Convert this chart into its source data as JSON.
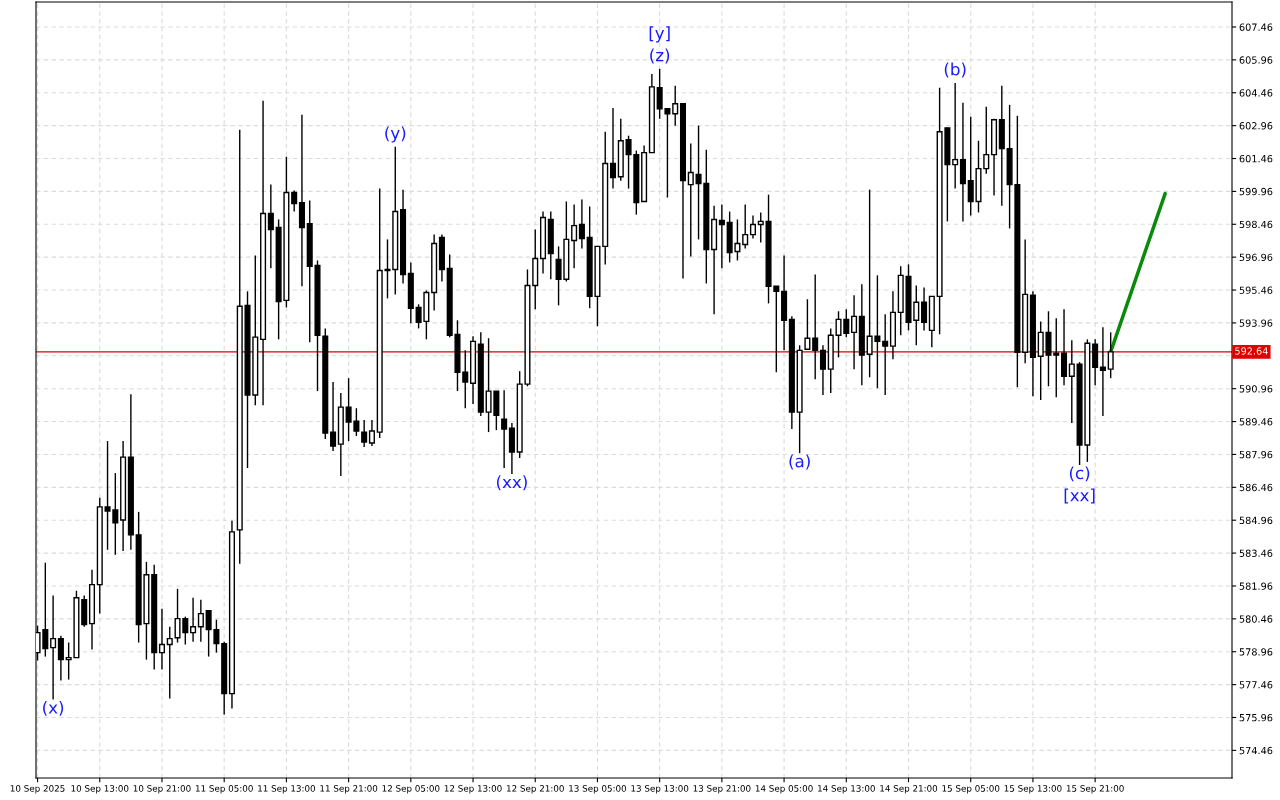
{
  "chart_data": {
    "type": "candlestick",
    "color": "#000000",
    "x": [
      "2025-09-10T05:00",
      "2025-09-10T06:00",
      "2025-09-10T07:00",
      "2025-09-10T08:00",
      "2025-09-10T09:00",
      "2025-09-10T10:00",
      "2025-09-10T11:00",
      "2025-09-10T12:00",
      "2025-09-10T13:00",
      "2025-09-10T14:00",
      "2025-09-10T15:00",
      "2025-09-10T16:00",
      "2025-09-10T17:00",
      "2025-09-10T18:00",
      "2025-09-10T19:00",
      "2025-09-10T20:00",
      "2025-09-10T21:00",
      "2025-09-10T22:00",
      "2025-09-10T23:00",
      "2025-09-11T00:00",
      "2025-09-11T01:00",
      "2025-09-11T02:00",
      "2025-09-11T03:00",
      "2025-09-11T04:00",
      "2025-09-11T05:00",
      "2025-09-11T06:00",
      "2025-09-11T07:00",
      "2025-09-11T08:00",
      "2025-09-11T09:00",
      "2025-09-11T10:00",
      "2025-09-11T11:00",
      "2025-09-11T12:00",
      "2025-09-11T13:00",
      "2025-09-11T14:00",
      "2025-09-11T15:00",
      "2025-09-11T16:00",
      "2025-09-11T17:00",
      "2025-09-11T18:00",
      "2025-09-11T19:00",
      "2025-09-11T20:00",
      "2025-09-11T21:00",
      "2025-09-11T22:00",
      "2025-09-11T23:00",
      "2025-09-12T00:00",
      "2025-09-12T01:00",
      "2025-09-12T02:00",
      "2025-09-12T03:00",
      "2025-09-12T04:00",
      "2025-09-12T05:00",
      "2025-09-12T06:00",
      "2025-09-12T07:00",
      "2025-09-12T08:00",
      "2025-09-12T09:00",
      "2025-09-12T10:00",
      "2025-09-12T11:00",
      "2025-09-12T12:00",
      "2025-09-12T13:00",
      "2025-09-12T14:00",
      "2025-09-12T15:00",
      "2025-09-12T16:00",
      "2025-09-12T17:00",
      "2025-09-12T18:00",
      "2025-09-12T19:00",
      "2025-09-12T20:00",
      "2025-09-12T21:00",
      "2025-09-12T22:00",
      "2025-09-12T23:00",
      "2025-09-13T00:00",
      "2025-09-13T01:00",
      "2025-09-13T02:00",
      "2025-09-13T03:00",
      "2025-09-13T04:00",
      "2025-09-13T05:00",
      "2025-09-13T06:00",
      "2025-09-13T07:00",
      "2025-09-13T08:00",
      "2025-09-13T09:00",
      "2025-09-13T10:00",
      "2025-09-13T11:00",
      "2025-09-13T12:00",
      "2025-09-13T13:00",
      "2025-09-13T14:00",
      "2025-09-13T15:00",
      "2025-09-13T16:00",
      "2025-09-13T17:00",
      "2025-09-13T18:00",
      "2025-09-13T19:00",
      "2025-09-13T20:00",
      "2025-09-13T21:00",
      "2025-09-13T22:00",
      "2025-09-13T23:00",
      "2025-09-14T00:00",
      "2025-09-14T01:00",
      "2025-09-14T02:00",
      "2025-09-14T03:00",
      "2025-09-14T04:00",
      "2025-09-14T05:00",
      "2025-09-14T06:00",
      "2025-09-14T07:00",
      "2025-09-14T08:00",
      "2025-09-14T09:00",
      "2025-09-14T10:00",
      "2025-09-14T11:00",
      "2025-09-14T12:00",
      "2025-09-14T13:00",
      "2025-09-14T14:00",
      "2025-09-14T15:00",
      "2025-09-14T16:00",
      "2025-09-14T17:00",
      "2025-09-14T18:00",
      "2025-09-14T19:00",
      "2025-09-14T20:00",
      "2025-09-14T21:00",
      "2025-09-14T22:00",
      "2025-09-14T23:00",
      "2025-09-15T00:00",
      "2025-09-15T01:00",
      "2025-09-15T02:00",
      "2025-09-15T03:00",
      "2025-09-15T04:00",
      "2025-09-15T05:00",
      "2025-09-15T06:00",
      "2025-09-15T07:00",
      "2025-09-15T08:00",
      "2025-09-15T09:00",
      "2025-09-15T10:00",
      "2025-09-15T11:00",
      "2025-09-15T12:00",
      "2025-09-15T13:00",
      "2025-09-15T14:00",
      "2025-09-15T15:00",
      "2025-09-15T16:00",
      "2025-09-15T17:00",
      "2025-09-15T18:00",
      "2025-09-15T19:00",
      "2025-09-15T20:00",
      "2025-09-15T21:00",
      "2025-09-15T22:00",
      "2025-09-15T23:00"
    ],
    "ohlc": [
      [
        578.92,
        580.15,
        578.56,
        579.83
      ],
      [
        579.97,
        583.02,
        578.74,
        579.1
      ],
      [
        579.15,
        581.52,
        576.78,
        579.56
      ],
      [
        579.56,
        579.69,
        577.65,
        578.6
      ],
      [
        578.6,
        579.38,
        577.69,
        578.69
      ],
      [
        578.69,
        581.74,
        578.69,
        581.42
      ],
      [
        581.33,
        581.52,
        580.1,
        580.2
      ],
      [
        580.24,
        582.7,
        579.06,
        582.02
      ],
      [
        582.02,
        585.98,
        580.7,
        585.57
      ],
      [
        585.57,
        588.57,
        583.61,
        585.38
      ],
      [
        585.43,
        587.11,
        583.38,
        584.84
      ],
      [
        584.97,
        588.57,
        583.56,
        587.84
      ],
      [
        587.84,
        590.71,
        583.61,
        584.29
      ],
      [
        584.29,
        585.34,
        579.38,
        580.2
      ],
      [
        580.24,
        583.06,
        578.6,
        582.47
      ],
      [
        582.47,
        582.93,
        578.15,
        578.92
      ],
      [
        578.92,
        580.92,
        578.15,
        579.29
      ],
      [
        579.29,
        580.1,
        576.83,
        579.56
      ],
      [
        579.6,
        581.83,
        579.38,
        580.47
      ],
      [
        580.47,
        580.56,
        579.29,
        579.83
      ],
      [
        579.83,
        581.42,
        579.42,
        580.1
      ],
      [
        580.1,
        581.33,
        579.42,
        580.7
      ],
      [
        580.83,
        580.83,
        578.74,
        579.97
      ],
      [
        579.97,
        580.42,
        578.92,
        579.33
      ],
      [
        579.33,
        579.42,
        576.1,
        577.05
      ],
      [
        577.05,
        584.93,
        576.37,
        584.43
      ],
      [
        584.52,
        602.77,
        582.97,
        594.72
      ],
      [
        594.76,
        595.4,
        587.34,
        590.67
      ],
      [
        590.67,
        597.04,
        590.21,
        593.31
      ],
      [
        593.21,
        604.09,
        590.21,
        598.95
      ],
      [
        598.95,
        600.27,
        596.45,
        598.22
      ],
      [
        598.31,
        598.68,
        593.21,
        594.94
      ],
      [
        594.99,
        601.54,
        594.67,
        599.91
      ],
      [
        599.91,
        600.0,
        599.04,
        599.4
      ],
      [
        599.45,
        603.46,
        595.63,
        598.31
      ],
      [
        598.49,
        599.54,
        593.08,
        596.54
      ],
      [
        596.58,
        596.81,
        590.85,
        593.4
      ],
      [
        593.35,
        593.71,
        588.66,
        588.94
      ],
      [
        588.98,
        591.26,
        588.12,
        588.34
      ],
      [
        588.43,
        590.76,
        586.98,
        590.12
      ],
      [
        590.12,
        591.44,
        588.57,
        589.44
      ],
      [
        589.48,
        590.07,
        588.8,
        589.03
      ],
      [
        588.98,
        589.53,
        588.3,
        588.53
      ],
      [
        588.48,
        589.53,
        588.34,
        589.03
      ],
      [
        588.98,
        600.09,
        588.71,
        596.35
      ],
      [
        596.35,
        597.77,
        595.08,
        596.4
      ],
      [
        596.4,
        602.0,
        595.26,
        599.04
      ],
      [
        599.13,
        600.04,
        595.76,
        596.17
      ],
      [
        596.22,
        596.72,
        593.94,
        594.63
      ],
      [
        594.67,
        594.81,
        593.71,
        593.99
      ],
      [
        594.03,
        595.44,
        593.21,
        595.35
      ],
      [
        595.35,
        597.99,
        594.53,
        597.58
      ],
      [
        597.86,
        597.99,
        595.85,
        596.4
      ],
      [
        596.45,
        597.08,
        593.31,
        593.4
      ],
      [
        593.44,
        594.08,
        590.85,
        591.71
      ],
      [
        591.71,
        592.71,
        590.07,
        591.26
      ],
      [
        591.21,
        593.35,
        590.26,
        593.12
      ],
      [
        592.99,
        593.53,
        589.71,
        589.89
      ],
      [
        589.89,
        593.26,
        588.98,
        590.85
      ],
      [
        590.85,
        590.85,
        589.07,
        589.75
      ],
      [
        589.57,
        590.89,
        587.34,
        589.12
      ],
      [
        589.16,
        589.39,
        587.07,
        588.07
      ],
      [
        588.07,
        591.76,
        587.8,
        591.17
      ],
      [
        591.17,
        596.4,
        591.07,
        595.67
      ],
      [
        595.67,
        598.22,
        594.58,
        596.9
      ],
      [
        596.9,
        599.04,
        596.22,
        598.77
      ],
      [
        598.68,
        599.04,
        595.95,
        597.13
      ],
      [
        596.86,
        597.45,
        594.76,
        595.95
      ],
      [
        595.95,
        599.5,
        595.85,
        597.77
      ],
      [
        597.72,
        599.36,
        596.45,
        598.4
      ],
      [
        598.45,
        599.59,
        597.36,
        597.81
      ],
      [
        597.86,
        599.27,
        594.63,
        595.17
      ],
      [
        595.17,
        597.45,
        593.81,
        597.45
      ],
      [
        597.45,
        602.68,
        596.63,
        601.23
      ],
      [
        601.23,
        603.77,
        600.09,
        600.59
      ],
      [
        600.63,
        603.27,
        600.45,
        602.27
      ],
      [
        602.32,
        602.5,
        600.09,
        601.64
      ],
      [
        601.64,
        601.82,
        598.9,
        599.45
      ],
      [
        599.5,
        602.05,
        599.5,
        601.73
      ],
      [
        601.73,
        605.32,
        601.73,
        604.73
      ],
      [
        604.69,
        605.55,
        603.27,
        603.73
      ],
      [
        603.73,
        603.73,
        599.68,
        603.5
      ],
      [
        603.5,
        604.78,
        602.96,
        603.96
      ],
      [
        603.96,
        603.96,
        595.99,
        600.45
      ],
      [
        600.27,
        602.14,
        596.99,
        600.82
      ],
      [
        600.73,
        602.96,
        597.77,
        600.32
      ],
      [
        600.32,
        601.86,
        595.76,
        597.31
      ],
      [
        597.31,
        599.31,
        594.35,
        598.68
      ],
      [
        598.63,
        599.36,
        596.45,
        598.45
      ],
      [
        598.54,
        599.04,
        596.72,
        597.17
      ],
      [
        597.22,
        598.68,
        596.81,
        597.58
      ],
      [
        597.54,
        599.36,
        597.36,
        597.99
      ],
      [
        597.99,
        598.86,
        597.81,
        598.45
      ],
      [
        598.45,
        599.0,
        597.63,
        598.59
      ],
      [
        598.59,
        599.81,
        594.85,
        595.63
      ],
      [
        595.63,
        595.63,
        591.71,
        595.4
      ],
      [
        595.4,
        597.04,
        592.71,
        594.08
      ],
      [
        594.12,
        594.26,
        589.12,
        589.89
      ],
      [
        589.89,
        592.94,
        588.02,
        592.71
      ],
      [
        592.76,
        595.04,
        592.76,
        593.26
      ],
      [
        593.26,
        596.17,
        591.39,
        592.71
      ],
      [
        592.71,
        592.94,
        590.67,
        591.85
      ],
      [
        591.85,
        593.71,
        590.76,
        593.4
      ],
      [
        593.4,
        594.49,
        592.39,
        594.12
      ],
      [
        594.12,
        594.58,
        593.31,
        593.49
      ],
      [
        593.53,
        595.22,
        591.85,
        594.26
      ],
      [
        594.26,
        595.72,
        591.12,
        592.49
      ],
      [
        592.53,
        600.04,
        591.48,
        593.35
      ],
      [
        593.35,
        596.13,
        590.98,
        593.12
      ],
      [
        593.12,
        594.35,
        590.67,
        592.9
      ],
      [
        592.9,
        595.4,
        592.3,
        594.44
      ],
      [
        594.44,
        596.54,
        593.4,
        596.13
      ],
      [
        596.08,
        596.63,
        593.62,
        593.99
      ],
      [
        594.08,
        595.67,
        592.94,
        594.9
      ],
      [
        594.9,
        595.58,
        593.62,
        593.99
      ],
      [
        593.62,
        595.17,
        592.85,
        595.17
      ],
      [
        595.17,
        604.69,
        593.44,
        602.68
      ],
      [
        602.86,
        602.86,
        598.59,
        601.18
      ],
      [
        601.18,
        604.91,
        600.09,
        601.41
      ],
      [
        601.41,
        604.0,
        598.59,
        600.32
      ],
      [
        600.45,
        603.37,
        598.86,
        599.5
      ],
      [
        599.5,
        602.27,
        599.0,
        601.0
      ],
      [
        601.0,
        603.82,
        600.77,
        601.64
      ],
      [
        601.64,
        603.27,
        599.77,
        603.23
      ],
      [
        603.23,
        604.78,
        599.31,
        601.91
      ],
      [
        601.91,
        603.91,
        598.27,
        600.27
      ],
      [
        600.27,
        603.41,
        591.03,
        592.62
      ],
      [
        592.62,
        597.77,
        592.12,
        595.26
      ],
      [
        595.22,
        595.4,
        590.62,
        592.39
      ],
      [
        592.44,
        594.03,
        590.44,
        593.53
      ],
      [
        593.53,
        594.49,
        591.07,
        592.49
      ],
      [
        592.58,
        594.17,
        590.57,
        592.49
      ],
      [
        592.58,
        594.58,
        591.12,
        591.53
      ],
      [
        591.53,
        593.17,
        589.39,
        592.08
      ],
      [
        592.08,
        592.17,
        587.48,
        588.39
      ],
      [
        588.39,
        593.21,
        587.62,
        593.03
      ],
      [
        592.99,
        593.21,
        591.12,
        591.94
      ],
      [
        591.94,
        593.76,
        589.71,
        591.8
      ],
      [
        591.85,
        593.53,
        591.44,
        592.64
      ]
    ],
    "series": [
      {
        "type": "line",
        "x": [
          "2025-09-15T23:00",
          "2025-09-16T06:00"
        ],
        "values": [
          592.64,
          599.86
        ],
        "color": "#0a8a0a"
      }
    ],
    "xlim": [
      "2025-09-10T04:48",
      "2025-09-16T14:36"
    ],
    "ylim": [
      573.2,
      608.6
    ],
    "xticks": [
      {
        "value": "2025-09-10T05:00",
        "label": "10 Sep 2025"
      },
      {
        "value": "2025-09-10T13:00",
        "label": "10 Sep 13:00"
      },
      {
        "value": "2025-09-10T21:00",
        "label": "10 Sep 21:00"
      },
      {
        "value": "2025-09-11T05:00",
        "label": "11 Sep 05:00"
      },
      {
        "value": "2025-09-11T13:00",
        "label": "11 Sep 13:00"
      },
      {
        "value": "2025-09-11T21:00",
        "label": "11 Sep 21:00"
      },
      {
        "value": "2025-09-12T05:00",
        "label": "12 Sep 05:00"
      },
      {
        "value": "2025-09-12T13:00",
        "label": "12 Sep 13:00"
      },
      {
        "value": "2025-09-12T21:00",
        "label": "12 Sep 21:00"
      },
      {
        "value": "2025-09-13T05:00",
        "label": "13 Sep 05:00"
      },
      {
        "value": "2025-09-13T13:00",
        "label": "13 Sep 13:00"
      },
      {
        "value": "2025-09-13T21:00",
        "label": "13 Sep 21:00"
      },
      {
        "value": "2025-09-14T05:00",
        "label": "14 Sep 05:00"
      },
      {
        "value": "2025-09-14T13:00",
        "label": "14 Sep 13:00"
      },
      {
        "value": "2025-09-14T21:00",
        "label": "14 Sep 21:00"
      },
      {
        "value": "2025-09-15T05:00",
        "label": "15 Sep 05:00"
      },
      {
        "value": "2025-09-15T13:00",
        "label": "15 Sep 13:00"
      },
      {
        "value": "2025-09-15T21:00",
        "label": "15 Sep 21:00"
      }
    ],
    "yticks": [
      607.46,
      605.96,
      604.46,
      602.96,
      601.46,
      599.96,
      598.46,
      596.96,
      595.46,
      593.96,
      {
        "value": 592.46,
        "label": null
      },
      590.96,
      589.46,
      587.96,
      586.46,
      584.96,
      583.46,
      581.96,
      580.46,
      578.96,
      577.46,
      575.96,
      574.46
    ],
    "ref_lines": [
      {
        "axis": "y",
        "value": 592.64,
        "label": "592.64",
        "color": "#e00000"
      }
    ],
    "annotations": [
      {
        "text": "(x)",
        "x": "2025-09-10T07:00",
        "y": 576.78
      },
      {
        "text": "(y)",
        "x": "2025-09-12T03:00",
        "y": 602.0
      },
      {
        "text": "(xx)",
        "x": "2025-09-12T18:00",
        "y": 587.07
      },
      {
        "text": "(z)",
        "x": "2025-09-13T13:00",
        "y": 605.55
      },
      {
        "text": "[y]",
        "x": "2025-09-13T13:00",
        "y": 605.55
      },
      {
        "text": "(b)",
        "x": "2025-09-15T03:00",
        "y": 604.91
      },
      {
        "text": "(a)",
        "x": "2025-09-14T07:00",
        "y": 588.02
      },
      {
        "text": "(c)",
        "x": "2025-09-15T19:00",
        "y": 587.48
      },
      {
        "text": "[xx]",
        "x": "2025-09-15T19:00",
        "y": 587.48
      }
    ],
    "grid": true
  }
}
